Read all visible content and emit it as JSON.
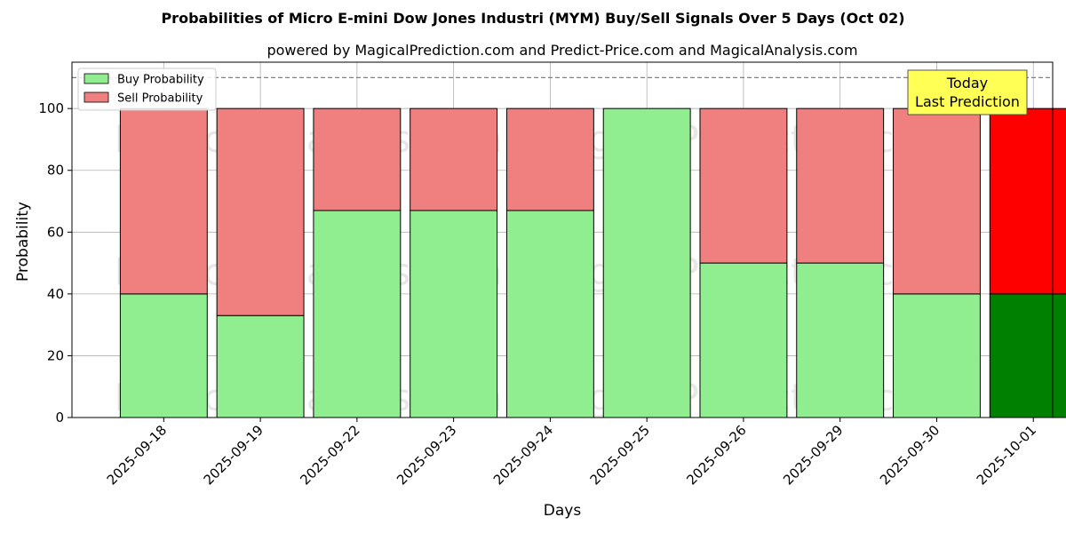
{
  "chart_data": {
    "type": "bar",
    "title": "Probabilities of Micro E-mini Dow Jones Industri (MYM) Buy/Sell Signals Over 5 Days (Oct 02)",
    "subtitle": "powered by MagicalPrediction.com and Predict-Price.com and MagicalAnalysis.com",
    "xlabel": "Days",
    "ylabel": "Probability",
    "ylim": [
      0,
      115
    ],
    "yticks": [
      0,
      20,
      40,
      60,
      80,
      100
    ],
    "stacked": true,
    "grid": true,
    "legend_position": "top-left",
    "categories": [
      "2025-09-18",
      "2025-09-19",
      "2025-09-22",
      "2025-09-23",
      "2025-09-24",
      "2025-09-25",
      "2025-09-26",
      "2025-09-29",
      "2025-09-30",
      "2025-10-01"
    ],
    "series": [
      {
        "name": "Buy Probability",
        "values": [
          40,
          33,
          67,
          67,
          67,
          100,
          50,
          50,
          40,
          40
        ],
        "color": "#90ee90",
        "highlight_color": "#008000"
      },
      {
        "name": "Sell Probability",
        "values": [
          60,
          67,
          33,
          33,
          33,
          0,
          50,
          50,
          60,
          60
        ],
        "color": "#f08080",
        "highlight_color": "#ff0000"
      }
    ],
    "highlight_index": 9,
    "reference_line": {
      "y": 110,
      "style": "dashed",
      "color": "#808080"
    },
    "annotation": {
      "lines": [
        "Today",
        "Last Prediction"
      ],
      "background": "#ffff55"
    },
    "watermarks": [
      "MagicalAnalysis.com",
      "MagicalPrediction.com"
    ]
  }
}
